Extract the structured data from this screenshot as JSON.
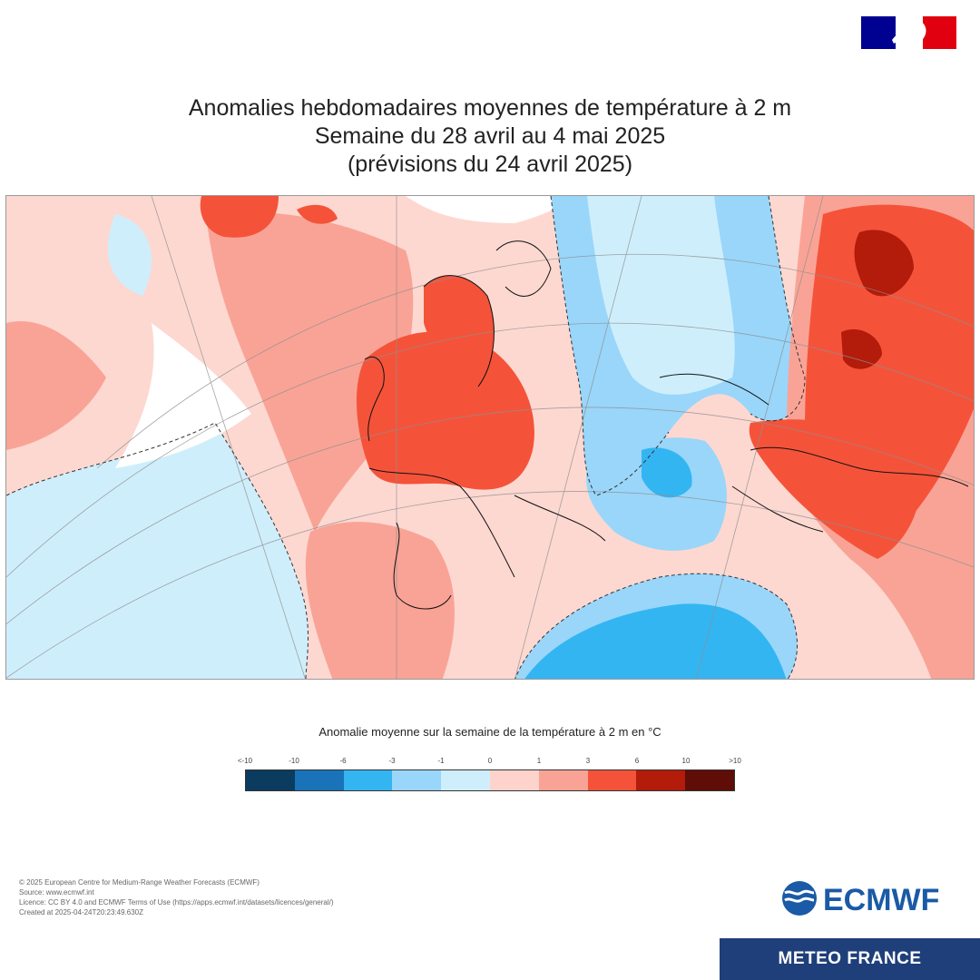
{
  "header": {
    "flag_colors": [
      "#000091",
      "#ffffff",
      "#e1000f"
    ],
    "title_lines": [
      "Anomalies hebdomadaires moyennes de température à 2 m",
      "Semaine du 28 avril au 4 mai 2025",
      "(prévisions du 24 avril 2025)"
    ]
  },
  "map": {
    "projection": "polar stereographic (Europe)",
    "dashed_contour": "0 °C anomaly"
  },
  "legend": {
    "title": "Anomalie moyenne sur la semaine de la température à 2 m en °C",
    "ticks": [
      "<-10",
      "-10",
      "-6",
      "-3",
      "-1",
      "0",
      "1",
      "3",
      "6",
      "10",
      ">10"
    ],
    "colors": [
      "#0b3b5e",
      "#1a73b8",
      "#33b5f2",
      "#99d6fa",
      "#cfeefc",
      "#fdd3cc",
      "#f9a396",
      "#f4533a",
      "#b31b0b",
      "#5e0d07"
    ]
  },
  "credits": {
    "lines": [
      "© 2025 European Centre for Medium-Range Weather Forecasts (ECMWF)",
      "Source: www.ecmwf.int",
      "Licence: CC BY 4.0 and ECMWF Terms of Use (https://apps.ecmwf.int/datasets/licences/general/)",
      "Created at 2025-04-24T20:23:49.630Z"
    ]
  },
  "logos": {
    "ecmwf_text": "ECMWF",
    "ecmwf_color": "#1a5aa6",
    "meteofrance_text": "METEO FRANCE",
    "meteofrance_bg": "#1f3f7a"
  }
}
